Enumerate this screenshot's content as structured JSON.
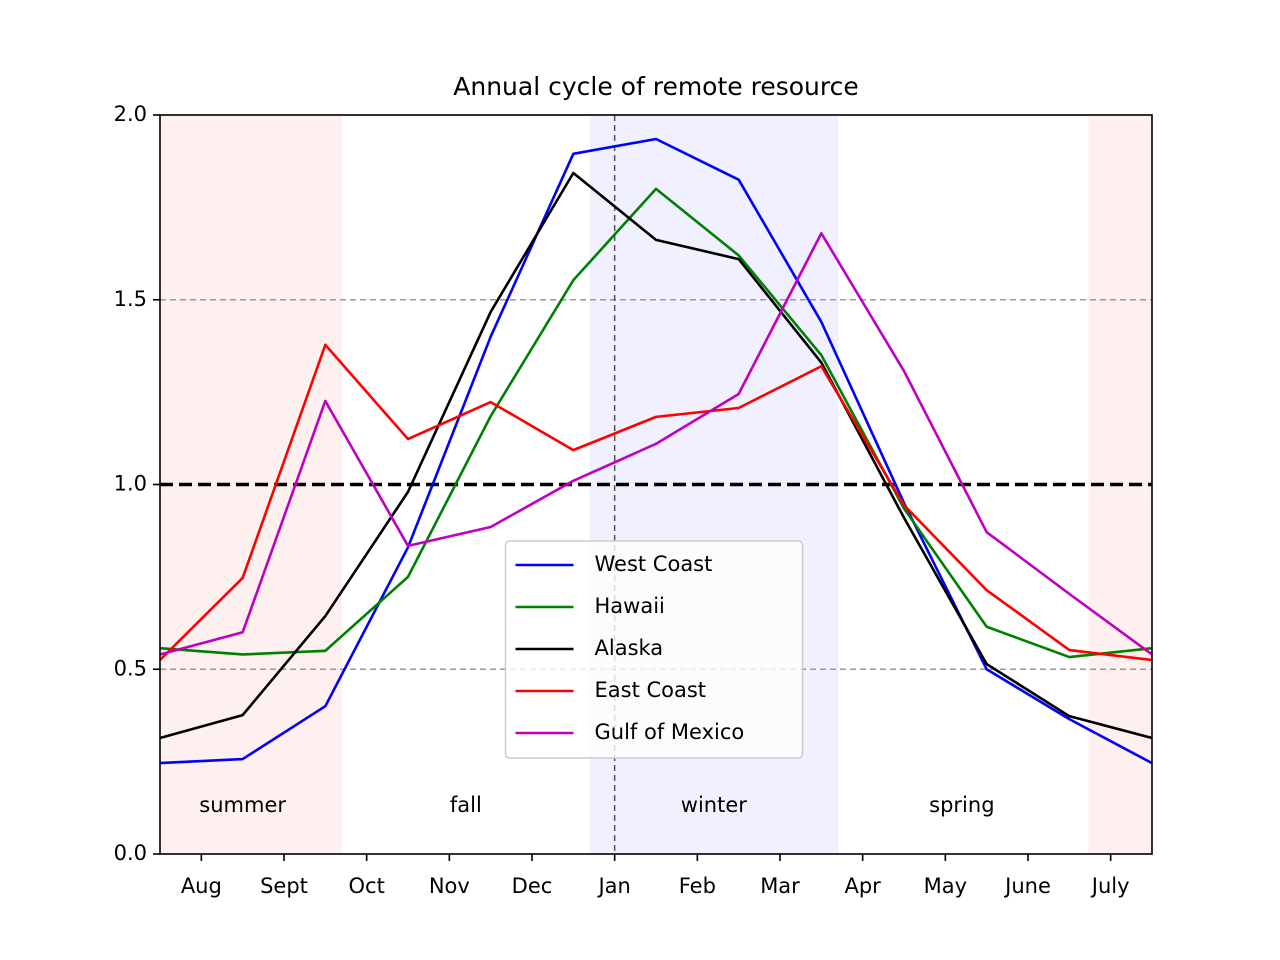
{
  "chart_data": {
    "type": "line",
    "title": "Annual cycle of remote resource",
    "x": [
      -0.5,
      0.5,
      1.5,
      2.5,
      3.5,
      4.5,
      5.5,
      6.5,
      7.5,
      8.5,
      9.5,
      10.5,
      11.5
    ],
    "series": [
      {
        "name": "West Coast",
        "color": "#0000ff",
        "values": [
          0.246,
          0.257,
          0.4,
          0.83,
          1.4,
          1.895,
          1.935,
          1.825,
          1.44,
          0.95,
          0.5,
          0.365,
          0.246
        ]
      },
      {
        "name": "Hawaii",
        "color": "#008000",
        "values": [
          0.557,
          0.54,
          0.55,
          0.75,
          1.185,
          1.553,
          1.8,
          1.62,
          1.35,
          0.935,
          0.615,
          0.533,
          0.557
        ]
      },
      {
        "name": "Alaska",
        "color": "#000000",
        "values": [
          0.314,
          0.376,
          0.644,
          0.98,
          1.467,
          1.843,
          1.662,
          1.61,
          1.33,
          0.91,
          0.514,
          0.373,
          0.314
        ]
      },
      {
        "name": "East Coast",
        "color": "#ff0000",
        "values": [
          0.525,
          0.747,
          1.378,
          1.123,
          1.223,
          1.093,
          1.183,
          1.207,
          1.32,
          0.944,
          0.714,
          0.552,
          0.525
        ]
      },
      {
        "name": "Gulf of Mexico",
        "color": "#bf00bf",
        "values": [
          0.54,
          0.6,
          1.226,
          0.834,
          0.885,
          1.01,
          1.11,
          1.245,
          1.68,
          1.307,
          0.871,
          0.704,
          0.54
        ]
      }
    ],
    "xlim": [
      -0.5,
      11.5
    ],
    "xticks": [
      {
        "value": 0,
        "label": "Aug"
      },
      {
        "value": 1,
        "label": "Sept"
      },
      {
        "value": 2,
        "label": "Oct"
      },
      {
        "value": 3,
        "label": "Nov"
      },
      {
        "value": 4,
        "label": "Dec"
      },
      {
        "value": 5,
        "label": "Jan"
      },
      {
        "value": 6,
        "label": "Feb"
      },
      {
        "value": 7,
        "label": "Mar"
      },
      {
        "value": 8,
        "label": "Apr"
      },
      {
        "value": 9,
        "label": "May"
      },
      {
        "value": 10,
        "label": "June"
      },
      {
        "value": 11,
        "label": "July"
      }
    ],
    "ylim": [
      0,
      2
    ],
    "yticks": [
      {
        "value": 0,
        "label": "0.0"
      },
      {
        "value": 0.5,
        "label": "0.5"
      },
      {
        "value": 1,
        "label": "1.0"
      },
      {
        "value": 1.5,
        "label": "1.5"
      },
      {
        "value": 2,
        "label": "2.0"
      }
    ],
    "shaded_regions": [
      {
        "xlim": [
          -0.5,
          1.7
        ],
        "color": "#fff0f0"
      },
      {
        "xlim": [
          10.73,
          11.5
        ],
        "color": "#fff0f0"
      },
      {
        "xlim": [
          4.7,
          7.71
        ],
        "color": "#f0f0ff"
      }
    ],
    "hlines": [
      {
        "y": 1,
        "color": "#000000",
        "width": 3.5
      },
      {
        "y": 0.5,
        "color": "#999999",
        "width": 1.5
      },
      {
        "y": 1.5,
        "color": "#999999",
        "width": 1.5
      }
    ],
    "vlines": [
      {
        "x": 5,
        "color": "#555555",
        "width": 1.5
      }
    ],
    "annotations": [
      {
        "text": "summer",
        "x": 0.5,
        "y": 0.13
      },
      {
        "text": "fall",
        "x": 3.2,
        "y": 0.13
      },
      {
        "text": "winter",
        "x": 6.2,
        "y": 0.13
      },
      {
        "text": "spring",
        "x": 9.2,
        "y": 0.13
      }
    ],
    "legend": "lower center"
  }
}
